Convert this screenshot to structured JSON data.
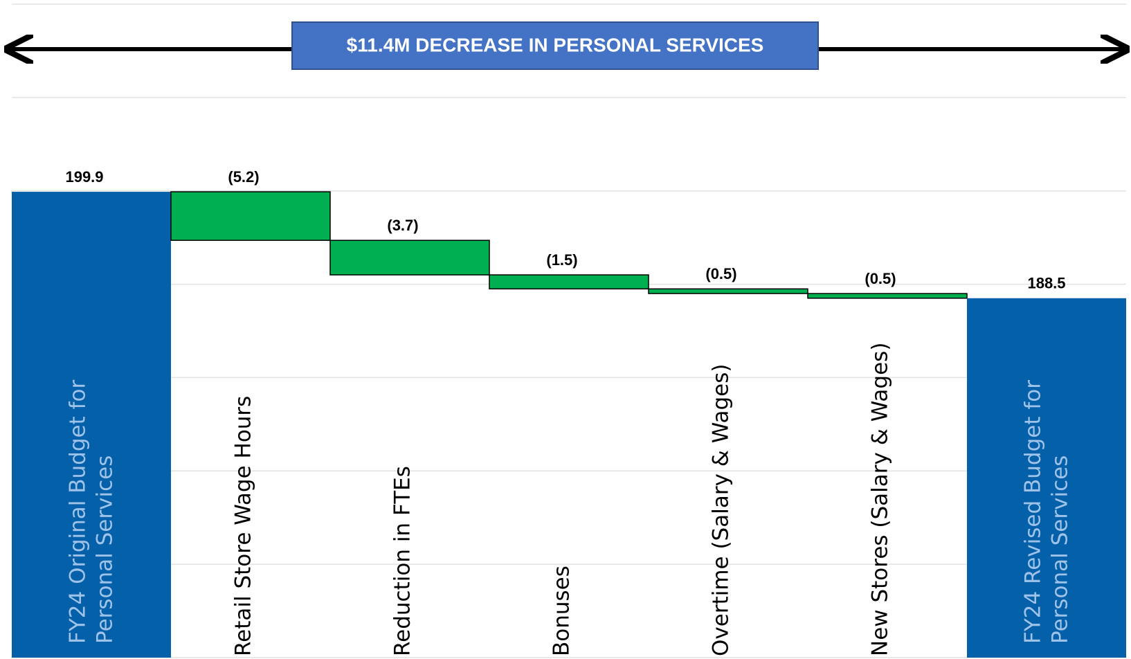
{
  "chart_data": {
    "type": "waterfall",
    "title": "$11.4M DECREASE IN PERSONAL SERVICES",
    "categories": [
      "FY24 Original Budget for Personal Services",
      "Retail Store Wage Hours",
      "Reduction in FTEs",
      "Bonuses",
      "Overtime (Salary & Wages)",
      "New Stores (Salary & Wages)",
      "FY24 Revised Budget for Personal Services"
    ],
    "values": [
      199.9,
      -5.2,
      -3.7,
      -1.5,
      -0.5,
      -0.5,
      188.5
    ],
    "value_labels": [
      "199.9",
      "(5.2)",
      "(3.7)",
      "(1.5)",
      "(0.5)",
      "(0.5)",
      "188.5"
    ],
    "totals": [
      true,
      false,
      false,
      false,
      false,
      false,
      true
    ],
    "total_color": "#0560aa",
    "decrease_color": "#00b050",
    "ylim": [
      150,
      220
    ],
    "yticks": [
      150,
      160,
      170,
      180,
      190,
      200,
      210,
      220
    ],
    "grid": true
  }
}
